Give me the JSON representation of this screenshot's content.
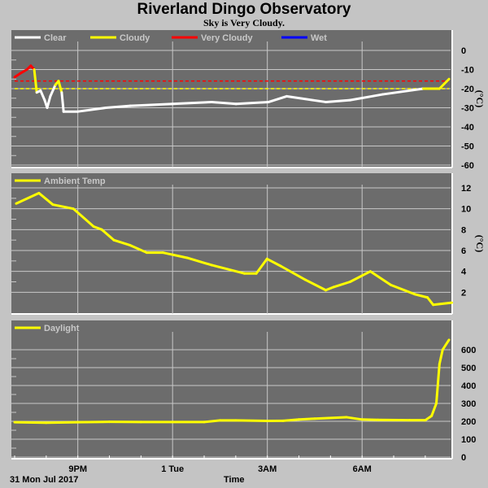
{
  "header": {
    "title": "Riverland Dingo Observatory",
    "status": "Sky is Very Cloudy."
  },
  "footer": {
    "date": "31 Mon Jul 2017",
    "xlabel": "Time"
  },
  "x_ticks": [
    {
      "hour": 2,
      "label": "9PM"
    },
    {
      "hour": 5,
      "label": "1 Tue"
    },
    {
      "hour": 8,
      "label": "3AM"
    },
    {
      "hour": 11,
      "label": "6AM"
    }
  ],
  "x_range_hours_from_7pm": [
    0,
    13.75
  ],
  "colors": {
    "clear": "#ffffff",
    "cloudy": "#ffff00",
    "very_cloudy": "#ff0000",
    "wet": "#0000ff"
  },
  "chart_data": [
    {
      "type": "line",
      "name": "sky-temp",
      "legend": [
        {
          "label": "Clear",
          "color": "#ffffff"
        },
        {
          "label": "Cloudy",
          "color": "#ffff00"
        },
        {
          "label": "Very Cloudy",
          "color": "#ff0000"
        },
        {
          "label": "Wet",
          "color": "#0000ff"
        }
      ],
      "ylabel": "(°C)",
      "ylim": [
        -60,
        0
      ],
      "yticks": [
        0,
        -10,
        -20,
        -30,
        -40,
        -50,
        -60
      ],
      "thresholds": [
        {
          "value": -16,
          "color": "#ff0000"
        },
        {
          "value": -20,
          "color": "#ffff00"
        }
      ],
      "x": [
        0,
        0.18,
        0.39,
        0.51,
        0.62,
        0.7,
        0.82,
        0.95,
        1.03,
        1.13,
        1.29,
        1.39,
        1.49,
        1.55,
        2.0,
        2.89,
        3.66,
        5.0,
        6.24,
        7.01,
        8.04,
        8.61,
        9.85,
        10.62,
        11.65,
        12.94,
        13.45,
        13.75
      ],
      "y": [
        -14,
        -12,
        -10,
        -8,
        -10,
        -22,
        -21,
        -26,
        -30,
        -24,
        -18,
        -16,
        -22,
        -32,
        -32,
        -30,
        -29,
        -28,
        -27,
        -28,
        -27,
        -24,
        -27,
        -26,
        -23,
        -20,
        -20,
        -15
      ]
    },
    {
      "type": "line",
      "name": "ambient-temp",
      "legend": [
        {
          "label": "Ambient Temp",
          "color": "#ffff00"
        }
      ],
      "ylabel": "(°C)",
      "ylim": [
        0,
        13
      ],
      "yticks": [
        12,
        10,
        8,
        6,
        4,
        2
      ],
      "x": [
        0.05,
        0.77,
        1.21,
        1.86,
        2.5,
        2.76,
        3.14,
        3.66,
        4.18,
        4.69,
        5.46,
        6.24,
        7.27,
        7.65,
        7.99,
        8.43,
        9.2,
        9.85,
        10.1,
        10.62,
        11.26,
        11.91,
        12.68,
        13.07,
        13.25,
        13.84
      ],
      "y": [
        10.5,
        11.5,
        10.4,
        10,
        8.3,
        8,
        7,
        6.5,
        5.8,
        5.8,
        5.3,
        4.6,
        3.8,
        3.8,
        5.2,
        4.5,
        3.2,
        2.2,
        2.5,
        3,
        4,
        2.7,
        1.8,
        1.5,
        0.8,
        1.0
      ]
    },
    {
      "type": "line",
      "name": "daylight",
      "legend": [
        {
          "label": "Daylight",
          "color": "#ffff00"
        }
      ],
      "ylabel": "",
      "ylim": [
        0,
        680
      ],
      "yticks": [
        600,
        500,
        400,
        300,
        200,
        100,
        0
      ],
      "x": [
        0,
        1,
        2,
        3,
        4,
        5,
        6,
        6.5,
        7,
        8,
        8.5,
        9,
        9.5,
        10.5,
        11,
        11.5,
        12.5,
        13.0,
        13.2,
        13.35,
        13.45,
        13.55,
        13.75
      ],
      "y": [
        195,
        192,
        195,
        197,
        196,
        196,
        196,
        205,
        205,
        202,
        203,
        210,
        215,
        223,
        210,
        208,
        206,
        206,
        230,
        300,
        520,
        600,
        655
      ]
    }
  ]
}
